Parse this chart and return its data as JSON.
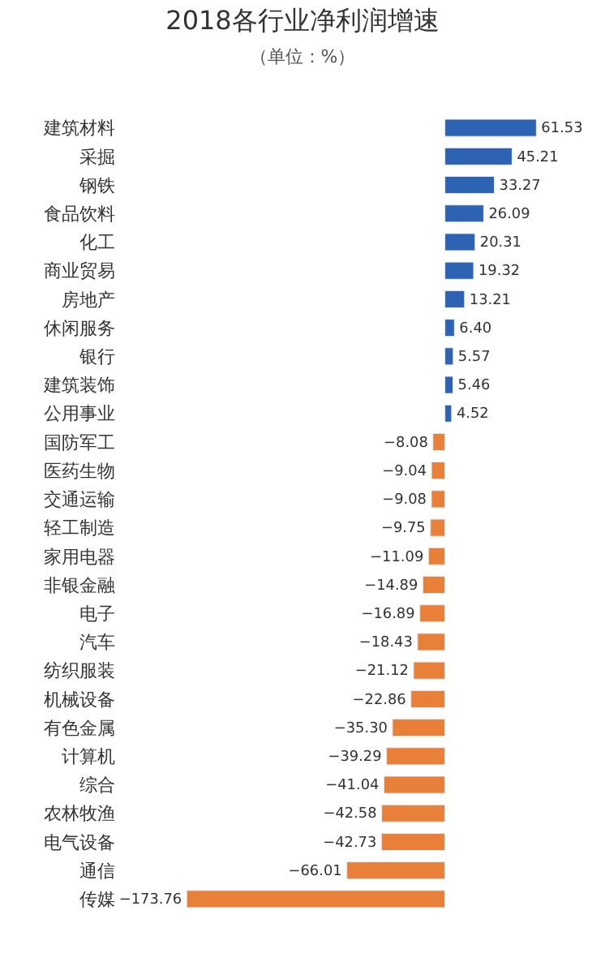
{
  "chart_data": {
    "type": "bar",
    "orientation": "horizontal",
    "title": "2018各行业净利润增速",
    "subtitle": "（单位：%）",
    "categories": [
      "建筑材料",
      "采掘",
      "钢铁",
      "食品饮料",
      "化工",
      "商业贸易",
      "房地产",
      "休闲服务",
      "银行",
      "建筑装饰",
      "公用事业",
      "国防军工",
      "医药生物",
      "交通运输",
      "轻工制造",
      "家用电器",
      "非银金融",
      "电子",
      "汽车",
      "纺织服装",
      "机械设备",
      "有色金属",
      "计算机",
      "综合",
      "农林牧渔",
      "电气设备",
      "通信",
      "传媒"
    ],
    "values": [
      61.53,
      45.21,
      33.27,
      26.09,
      20.31,
      19.32,
      13.21,
      6.4,
      5.57,
      5.46,
      4.52,
      -8.08,
      -9.04,
      -9.08,
      -9.75,
      -11.09,
      -14.89,
      -16.89,
      -18.43,
      -21.12,
      -22.86,
      -35.3,
      -39.29,
      -41.04,
      -42.58,
      -42.73,
      -66.01,
      -173.76
    ],
    "value_labels": [
      "61.53",
      "45.21",
      "33.27",
      "26.09",
      "20.31",
      "19.32",
      "13.21",
      "6.40",
      "5.57",
      "5.46",
      "4.52",
      "−8.08",
      "−9.04",
      "−9.08",
      "−9.75",
      "−11.09",
      "−14.89",
      "−16.89",
      "−18.43",
      "−21.12",
      "−22.86",
      "−35.30",
      "−39.29",
      "−41.04",
      "−42.58",
      "−42.73",
      "−66.01",
      "−173.76"
    ],
    "colors": [
      "#2e63b3",
      "#2e63b3",
      "#2e63b3",
      "#2e63b3",
      "#2e63b3",
      "#2e63b3",
      "#2e63b3",
      "#2e63b3",
      "#2e63b3",
      "#2e63b3",
      "#2e63b3",
      "#e8803a",
      "#e8803a",
      "#e8803a",
      "#e8803a",
      "#e8803a",
      "#e8803a",
      "#e8803a",
      "#e8803a",
      "#e8803a",
      "#e8803a",
      "#e8803a",
      "#e8803a",
      "#e8803a",
      "#e8803a",
      "#e8803a",
      "#e8803a",
      "#e8803a"
    ]
  }
}
